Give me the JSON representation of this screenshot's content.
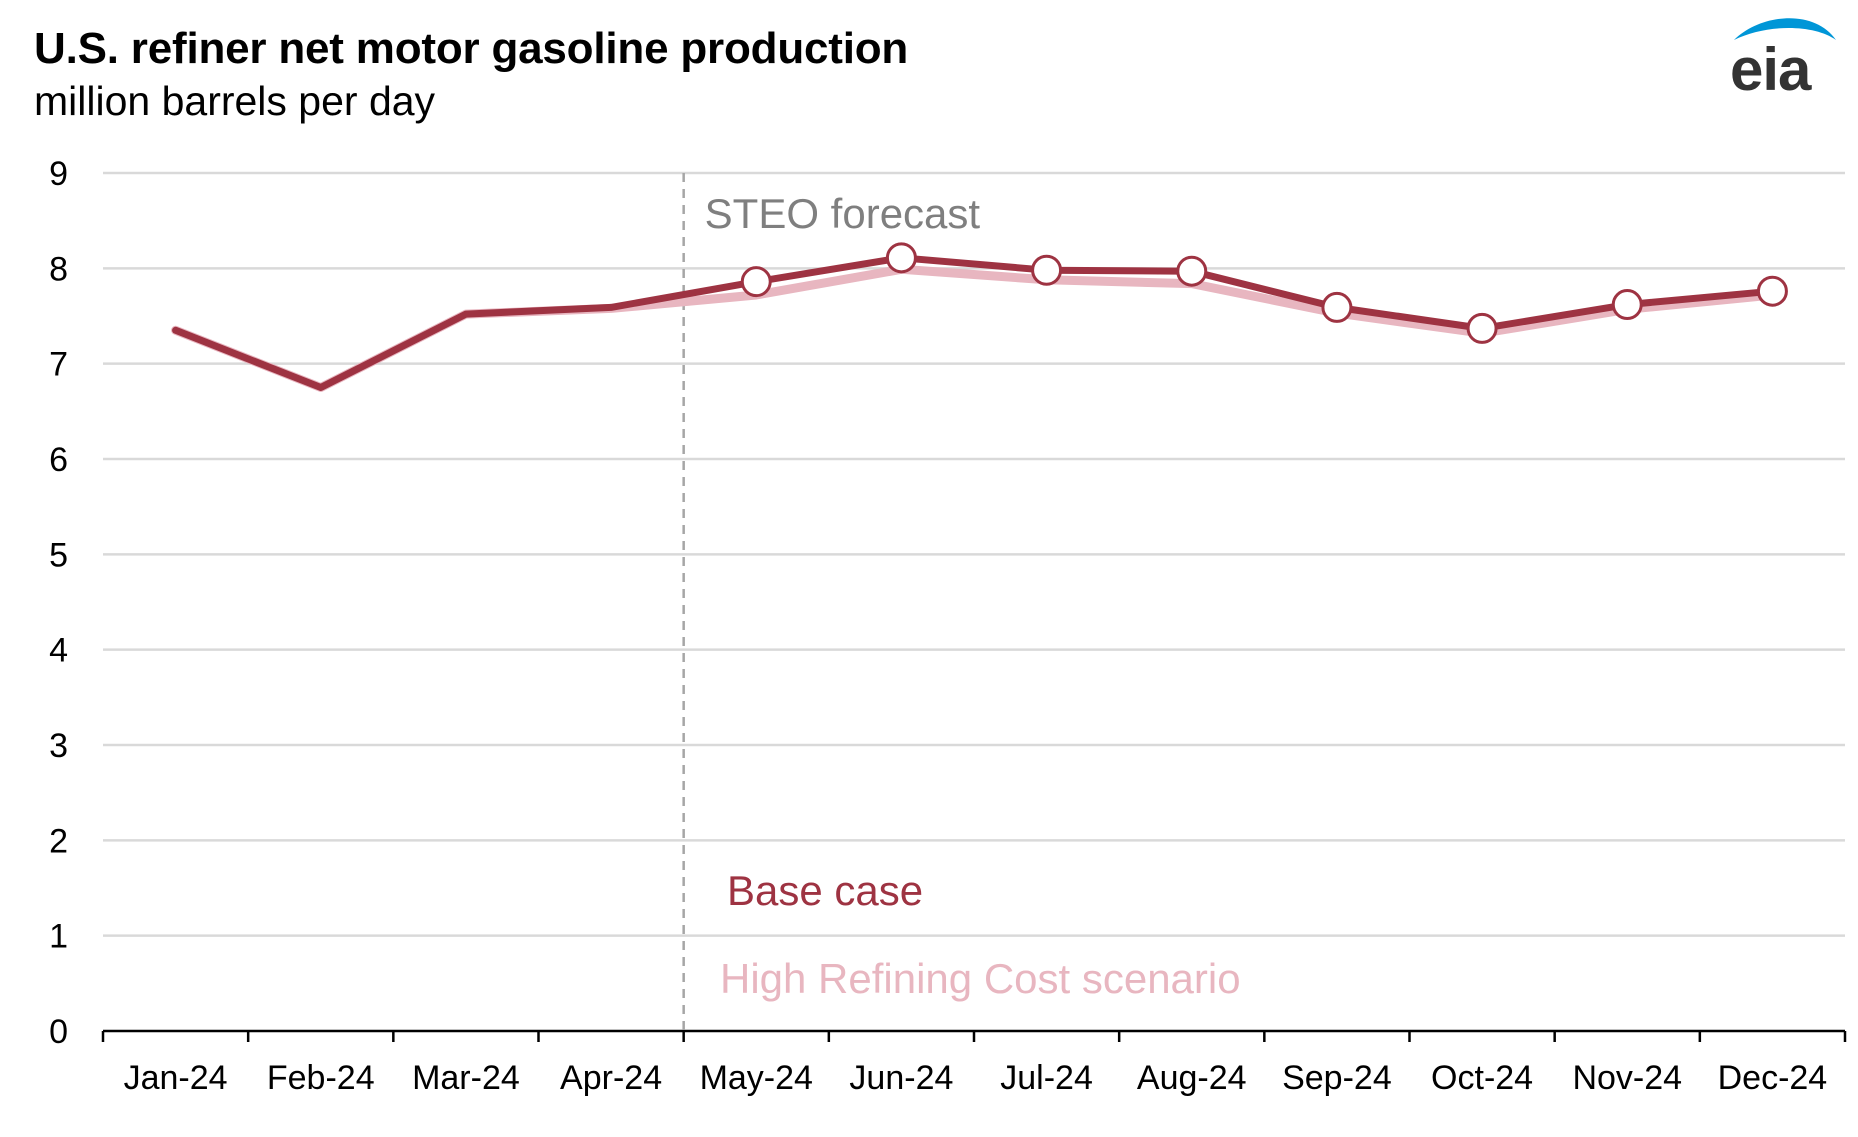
{
  "header": {
    "title": "U.S. refiner net motor gasoline production",
    "subtitle": "million barrels per day"
  },
  "logo": {
    "text": "eia",
    "icon": "eia-swoosh-icon",
    "color": "#0096d7"
  },
  "chart_data": {
    "type": "line",
    "title": "U.S. refiner net motor gasoline production",
    "subtitle": "million barrels per day",
    "xlabel": "",
    "ylabel": "",
    "categories": [
      "Jan-24",
      "Feb-24",
      "Mar-24",
      "Apr-24",
      "May-24",
      "Jun-24",
      "Jul-24",
      "Aug-24",
      "Sep-24",
      "Oct-24",
      "Nov-24",
      "Dec-24"
    ],
    "ylim": [
      0,
      9
    ],
    "yticks": [
      "0",
      "1",
      "2",
      "3",
      "4",
      "5",
      "6",
      "7",
      "8",
      "9"
    ],
    "grid": true,
    "forecast_start_after": "Apr-24",
    "annotations": [
      {
        "text": "STEO forecast",
        "color": "#7f7f7f"
      }
    ],
    "series": [
      {
        "name": "High Refining Cost scenario",
        "color": "#e8b6c0",
        "values": [
          7.35,
          6.75,
          7.52,
          7.58,
          7.72,
          7.99,
          7.88,
          7.84,
          7.53,
          7.32,
          7.57,
          7.72
        ]
      },
      {
        "name": "Base case",
        "color": "#9e3342",
        "values": [
          7.35,
          6.75,
          7.52,
          7.59,
          7.86,
          8.11,
          7.98,
          7.97,
          7.59,
          7.37,
          7.62,
          7.76
        ],
        "markers_from": "May-24"
      }
    ],
    "legend_placement": "bottom-center"
  }
}
